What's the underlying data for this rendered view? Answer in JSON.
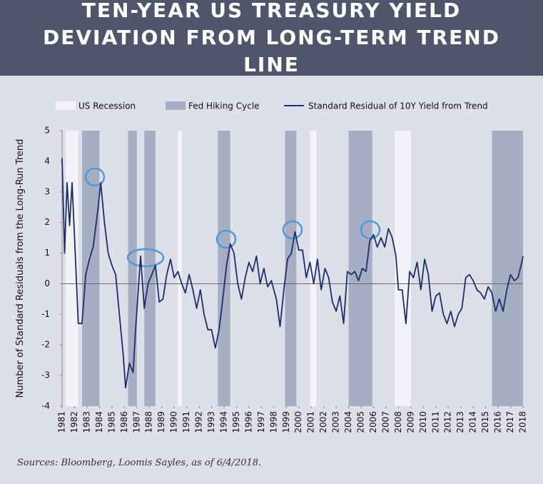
{
  "chart_data": {
    "type": "line",
    "title": "TEN-YEAR US TREASURY YIELD DEVIATION FROM LONG-TERM TREND LINE",
    "y_label": "Number of Standard Residuals from the Long-Run Trend",
    "source": "Sources: Bloomberg, Loomis Sayles, as of 6/4/2018.",
    "legend": "top",
    "xlim": [
      1981,
      2018
    ],
    "xticks": [
      1981,
      1982,
      1983,
      1984,
      1985,
      1986,
      1987,
      1988,
      1989,
      1990,
      1991,
      1992,
      1993,
      1994,
      1995,
      1996,
      1997,
      1998,
      1999,
      2000,
      2001,
      2002,
      2003,
      2004,
      2005,
      2006,
      2007,
      2008,
      2009,
      2010,
      2011,
      2012,
      2013,
      2014,
      2015,
      2016,
      2017,
      2018
    ],
    "ylim": [
      -4,
      5
    ],
    "yticks": [
      -4,
      -3,
      -2,
      -1,
      0,
      1,
      2,
      3,
      4,
      5
    ],
    "recessions": {
      "name": "US Recession",
      "color": "#f2f3f6",
      "spans": [
        [
          1981.3,
          1982.3
        ],
        [
          1990.3,
          1990.6
        ],
        [
          2000.9,
          2001.4
        ],
        [
          2007.7,
          2009.0
        ]
      ]
    },
    "hiking_cycles": {
      "name": "Fed Hiking Cycle",
      "color": "#a6aec4",
      "spans": [
        [
          1982.6,
          1984.0
        ],
        [
          1986.3,
          1987.0
        ],
        [
          1987.6,
          1988.5
        ],
        [
          1993.5,
          1994.5
        ],
        [
          1998.9,
          1999.8
        ],
        [
          2004.0,
          2005.9
        ],
        [
          2015.5,
          2018.0
        ]
      ]
    },
    "x": [
      1981.0,
      1981.2,
      1981.4,
      1981.6,
      1981.8,
      1982.0,
      1982.3,
      1982.6,
      1982.9,
      1983.2,
      1983.5,
      1983.9,
      1984.1,
      1984.4,
      1984.7,
      1985.0,
      1985.3,
      1985.6,
      1985.9,
      1986.1,
      1986.4,
      1986.7,
      1986.9,
      1987.1,
      1987.3,
      1987.6,
      1987.9,
      1988.2,
      1988.5,
      1988.8,
      1989.1,
      1989.4,
      1989.7,
      1990.0,
      1990.3,
      1990.6,
      1990.9,
      1991.2,
      1991.5,
      1991.8,
      1992.1,
      1992.4,
      1992.7,
      1993.0,
      1993.3,
      1993.6,
      1993.9,
      1994.2,
      1994.5,
      1994.8,
      1995.1,
      1995.4,
      1995.7,
      1996.0,
      1996.3,
      1996.6,
      1996.9,
      1997.2,
      1997.5,
      1997.8,
      1998.2,
      1998.5,
      1998.8,
      1999.1,
      1999.4,
      1999.7,
      2000.0,
      2000.3,
      2000.6,
      2000.9,
      2001.2,
      2001.5,
      2001.8,
      2002.1,
      2002.4,
      2002.7,
      2003.0,
      2003.3,
      2003.6,
      2003.9,
      2004.2,
      2004.5,
      2004.8,
      2005.1,
      2005.4,
      2005.7,
      2006.0,
      2006.3,
      2006.6,
      2006.9,
      2007.2,
      2007.5,
      2007.8,
      2008.0,
      2008.3,
      2008.6,
      2008.9,
      2009.2,
      2009.5,
      2009.8,
      2010.1,
      2010.4,
      2010.7,
      2011.0,
      2011.3,
      2011.6,
      2011.9,
      2012.2,
      2012.5,
      2012.8,
      2013.1,
      2013.4,
      2013.7,
      2014.0,
      2014.3,
      2014.6,
      2014.9,
      2015.2,
      2015.5,
      2015.8,
      2016.1,
      2016.4,
      2016.7,
      2017.0,
      2017.3,
      2017.6,
      2017.9,
      2018.0
    ],
    "series": [
      {
        "name": "Standard Residual of 10Y Yield from Trend",
        "color": "#1f2d6b",
        "values": [
          4.1,
          1.0,
          3.3,
          1.9,
          3.3,
          1.5,
          -1.3,
          -1.3,
          0.3,
          0.8,
          1.2,
          2.5,
          3.3,
          2.0,
          1.0,
          0.6,
          0.3,
          -1.0,
          -2.3,
          -3.4,
          -2.6,
          -2.9,
          -1.5,
          -0.3,
          0.9,
          -0.8,
          0.0,
          0.3,
          0.6,
          -0.6,
          -0.5,
          0.3,
          0.8,
          0.2,
          0.4,
          0.0,
          -0.3,
          0.3,
          -0.2,
          -0.8,
          -0.2,
          -1.0,
          -1.5,
          -1.5,
          -2.1,
          -1.5,
          -0.5,
          0.6,
          1.3,
          1.0,
          0.0,
          -0.5,
          0.2,
          0.7,
          0.4,
          0.9,
          0.0,
          0.5,
          -0.1,
          0.1,
          -0.5,
          -1.4,
          -0.2,
          0.8,
          1.0,
          1.7,
          1.1,
          1.1,
          0.2,
          0.7,
          0.0,
          0.8,
          -0.2,
          0.5,
          0.2,
          -0.6,
          -0.9,
          -0.4,
          -1.3,
          0.4,
          0.3,
          0.4,
          0.1,
          0.5,
          0.4,
          1.4,
          1.6,
          1.2,
          1.5,
          1.2,
          1.8,
          1.5,
          0.9,
          -0.2,
          -0.2,
          -1.3,
          0.4,
          0.2,
          0.7,
          -0.2,
          0.8,
          0.3,
          -0.9,
          -0.4,
          -0.3,
          -1.0,
          -1.3,
          -0.9,
          -1.4,
          -1.0,
          -0.8,
          0.2,
          0.3,
          0.1,
          -0.2,
          -0.3,
          -0.5,
          -0.1,
          -0.3,
          -0.9,
          -0.5,
          -0.9,
          -0.2,
          0.3,
          0.1,
          0.2,
          0.7,
          0.9
        ]
      }
    ]
  }
}
